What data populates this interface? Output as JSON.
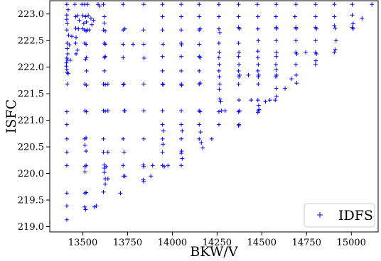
{
  "chart_data": {
    "type": "scatter",
    "title": "",
    "xlabel": "BKW/V",
    "ylabel": "ISFC",
    "xlim": [
      13315,
      15150
    ],
    "ylim": [
      218.9,
      223.25
    ],
    "xticks": [
      13500,
      13750,
      14000,
      14250,
      14500,
      14750,
      15000
    ],
    "xtick_labels": [
      "13500",
      "13750",
      "14000",
      "14250",
      "14500",
      "14750",
      "15000"
    ],
    "yticks": [
      219.0,
      219.5,
      220.0,
      220.5,
      221.0,
      221.5,
      222.0,
      222.5,
      223.0
    ],
    "ytick_labels": [
      "219.0",
      "219.5",
      "220.0",
      "220.5",
      "221.0",
      "221.5",
      "222.0",
      "222.5",
      "223.0"
    ],
    "grid": false,
    "legend_position": "lower-right",
    "marker": "+",
    "series": [
      {
        "name": "IDFS",
        "color": "#0000ff",
        "points": [
          [
            13410,
            223.18
          ],
          [
            13418,
            223.08
          ],
          [
            13410,
            222.98
          ],
          [
            13410,
            222.9
          ],
          [
            13412,
            222.82
          ],
          [
            13410,
            222.7
          ],
          [
            13420,
            222.6
          ],
          [
            13438,
            222.58
          ],
          [
            13412,
            222.45
          ],
          [
            13425,
            222.42
          ],
          [
            13412,
            222.35
          ],
          [
            13415,
            222.25
          ],
          [
            13410,
            222.17
          ],
          [
            13415,
            222.13
          ],
          [
            13430,
            222.13
          ],
          [
            13408,
            222.08
          ],
          [
            13408,
            222.02
          ],
          [
            13410,
            221.96
          ],
          [
            13412,
            221.9
          ],
          [
            13418,
            221.88
          ],
          [
            13412,
            221.68
          ],
          [
            13410,
            221.16
          ],
          [
            13410,
            220.92
          ],
          [
            13410,
            220.65
          ],
          [
            13410,
            220.4
          ],
          [
            13410,
            220.15
          ],
          [
            13410,
            219.63
          ],
          [
            13410,
            219.39
          ],
          [
            13410,
            219.13
          ],
          [
            13455,
            223.18
          ],
          [
            13460,
            222.95
          ],
          [
            13470,
            222.97
          ],
          [
            13480,
            222.88
          ],
          [
            13460,
            222.73
          ],
          [
            13475,
            222.72
          ],
          [
            13462,
            222.56
          ],
          [
            13460,
            222.45
          ],
          [
            13470,
            222.32
          ],
          [
            13462,
            222.25
          ],
          [
            13495,
            223.18
          ],
          [
            13510,
            223.18
          ],
          [
            13525,
            223.18
          ],
          [
            13500,
            222.97
          ],
          [
            13515,
            222.95
          ],
          [
            13530,
            222.97
          ],
          [
            13505,
            222.82
          ],
          [
            13520,
            222.85
          ],
          [
            13500,
            222.72
          ],
          [
            13510,
            222.7
          ],
          [
            13518,
            222.68
          ],
          [
            13525,
            222.7
          ],
          [
            13535,
            222.7
          ],
          [
            13510,
            222.45
          ],
          [
            13518,
            222.43
          ],
          [
            13520,
            222.18
          ],
          [
            13515,
            222.15
          ],
          [
            13520,
            221.93
          ],
          [
            13512,
            221.68
          ],
          [
            13520,
            221.66
          ],
          [
            13512,
            221.18
          ],
          [
            13520,
            221.16
          ],
          [
            13510,
            220.65
          ],
          [
            13518,
            220.67
          ],
          [
            13512,
            220.53
          ],
          [
            13518,
            220.42
          ],
          [
            13512,
            220.13
          ],
          [
            13518,
            220.15
          ],
          [
            13512,
            220.03
          ],
          [
            13512,
            219.63
          ],
          [
            13518,
            219.64
          ],
          [
            13510,
            219.37
          ],
          [
            13515,
            219.32
          ],
          [
            13545,
            222.92
          ],
          [
            13550,
            222.8
          ],
          [
            13560,
            222.88
          ],
          [
            13565,
            219.37
          ],
          [
            13575,
            219.39
          ],
          [
            13585,
            223.18
          ],
          [
            13595,
            223.15
          ],
          [
            13615,
            223.18
          ],
          [
            13620,
            222.95
          ],
          [
            13620,
            222.83
          ],
          [
            13615,
            222.7
          ],
          [
            13625,
            222.68
          ],
          [
            13620,
            222.45
          ],
          [
            13625,
            222.43
          ],
          [
            13620,
            222.18
          ],
          [
            13625,
            222.2
          ],
          [
            13620,
            221.93
          ],
          [
            13615,
            221.68
          ],
          [
            13625,
            221.67
          ],
          [
            13640,
            221.68
          ],
          [
            13615,
            221.18
          ],
          [
            13625,
            221.17
          ],
          [
            13640,
            221.18
          ],
          [
            13615,
            220.65
          ],
          [
            13615,
            220.4
          ],
          [
            13620,
            220.16
          ],
          [
            13630,
            220.13
          ],
          [
            13620,
            220.02
          ],
          [
            13625,
            219.9
          ],
          [
            13640,
            219.9
          ],
          [
            13625,
            219.8
          ],
          [
            13615,
            219.65
          ],
          [
            13640,
            220.4
          ],
          [
            13620,
            220.1
          ],
          [
            13710,
            219.63
          ],
          [
            13725,
            223.18
          ],
          [
            13725,
            222.7
          ],
          [
            13735,
            222.72
          ],
          [
            13725,
            222.43
          ],
          [
            13725,
            222.18
          ],
          [
            13730,
            221.68
          ],
          [
            13725,
            221.67
          ],
          [
            13730,
            221.18
          ],
          [
            13735,
            221.18
          ],
          [
            13725,
            220.65
          ],
          [
            13730,
            220.4
          ],
          [
            13725,
            220.15
          ],
          [
            13728,
            219.95
          ],
          [
            13735,
            219.95
          ],
          [
            13780,
            222.43
          ],
          [
            13840,
            223.18
          ],
          [
            13838,
            222.7
          ],
          [
            13840,
            222.43
          ],
          [
            13842,
            222.17
          ],
          [
            13840,
            221.68
          ],
          [
            13840,
            221.18
          ],
          [
            13840,
            220.65
          ],
          [
            13838,
            220.16
          ],
          [
            13840,
            220.13
          ],
          [
            13838,
            219.88
          ],
          [
            13840,
            219.85
          ],
          [
            13880,
            219.95
          ],
          [
            13890,
            220.15
          ],
          [
            13945,
            223.18
          ],
          [
            13945,
            222.95
          ],
          [
            13945,
            222.7
          ],
          [
            13948,
            222.43
          ],
          [
            13945,
            222.2
          ],
          [
            13945,
            221.93
          ],
          [
            13945,
            221.68
          ],
          [
            13948,
            221.67
          ],
          [
            13945,
            221.18
          ],
          [
            13945,
            220.92
          ],
          [
            13950,
            220.8
          ],
          [
            13945,
            220.65
          ],
          [
            13948,
            220.55
          ],
          [
            13945,
            220.4
          ],
          [
            13945,
            220.15
          ],
          [
            13955,
            220.13
          ],
          [
            13975,
            220.15
          ],
          [
            14050,
            223.18
          ],
          [
            14050,
            222.95
          ],
          [
            14050,
            222.7
          ],
          [
            14050,
            222.45
          ],
          [
            14052,
            222.42
          ],
          [
            14050,
            222.2
          ],
          [
            14050,
            221.93
          ],
          [
            14050,
            221.68
          ],
          [
            14052,
            221.66
          ],
          [
            14050,
            221.18
          ],
          [
            14050,
            220.92
          ],
          [
            14055,
            220.8
          ],
          [
            14050,
            220.65
          ],
          [
            14052,
            220.42
          ],
          [
            14050,
            220.38
          ],
          [
            14055,
            220.28
          ],
          [
            14050,
            220.15
          ],
          [
            14150,
            223.18
          ],
          [
            14150,
            222.95
          ],
          [
            14150,
            222.7
          ],
          [
            14155,
            222.72
          ],
          [
            14150,
            222.43
          ],
          [
            14150,
            222.2
          ],
          [
            14155,
            222.18
          ],
          [
            14150,
            221.93
          ],
          [
            14150,
            221.68
          ],
          [
            14155,
            221.7
          ],
          [
            14150,
            221.18
          ],
          [
            14155,
            221.16
          ],
          [
            14150,
            220.92
          ],
          [
            14158,
            220.78
          ],
          [
            14150,
            220.65
          ],
          [
            14162,
            220.58
          ],
          [
            14170,
            220.48
          ],
          [
            14220,
            220.65
          ],
          [
            14260,
            223.18
          ],
          [
            14260,
            222.95
          ],
          [
            14260,
            222.72
          ],
          [
            14265,
            222.65
          ],
          [
            14260,
            222.45
          ],
          [
            14262,
            222.28
          ],
          [
            14260,
            222.18
          ],
          [
            14262,
            222.05
          ],
          [
            14260,
            221.93
          ],
          [
            14262,
            221.82
          ],
          [
            14265,
            221.68
          ],
          [
            14262,
            221.58
          ],
          [
            14265,
            221.4
          ],
          [
            14270,
            221.35
          ],
          [
            14260,
            221.16
          ],
          [
            14275,
            221.18
          ],
          [
            14295,
            221.18
          ],
          [
            14260,
            220.92
          ],
          [
            14370,
            223.18
          ],
          [
            14370,
            222.95
          ],
          [
            14370,
            222.75
          ],
          [
            14375,
            222.72
          ],
          [
            14370,
            222.45
          ],
          [
            14372,
            222.28
          ],
          [
            14370,
            222.2
          ],
          [
            14372,
            222.05
          ],
          [
            14370,
            221.93
          ],
          [
            14372,
            221.82
          ],
          [
            14375,
            221.85
          ],
          [
            14370,
            221.68
          ],
          [
            14372,
            221.38
          ],
          [
            14370,
            221.16
          ],
          [
            14375,
            221.18
          ],
          [
            14372,
            220.92
          ],
          [
            14370,
            220.9
          ],
          [
            14425,
            221.85
          ],
          [
            14440,
            221.38
          ],
          [
            14475,
            223.18
          ],
          [
            14478,
            222.95
          ],
          [
            14478,
            222.72
          ],
          [
            14480,
            222.5
          ],
          [
            14478,
            222.3
          ],
          [
            14478,
            222.18
          ],
          [
            14480,
            222.05
          ],
          [
            14478,
            221.93
          ],
          [
            14480,
            221.82
          ],
          [
            14482,
            221.85
          ],
          [
            14480,
            221.68
          ],
          [
            14478,
            221.38
          ],
          [
            14482,
            221.28
          ],
          [
            14480,
            221.18
          ],
          [
            14485,
            221.2
          ],
          [
            14478,
            221.15
          ],
          [
            14520,
            221.35
          ],
          [
            14545,
            221.38
          ],
          [
            14580,
            223.18
          ],
          [
            14578,
            222.95
          ],
          [
            14580,
            222.75
          ],
          [
            14582,
            222.72
          ],
          [
            14580,
            222.5
          ],
          [
            14582,
            222.28
          ],
          [
            14580,
            222.2
          ],
          [
            14578,
            222.05
          ],
          [
            14580,
            221.95
          ],
          [
            14578,
            221.82
          ],
          [
            14582,
            221.85
          ],
          [
            14580,
            221.6
          ],
          [
            14582,
            221.45
          ],
          [
            14575,
            221.38
          ],
          [
            14630,
            221.6
          ],
          [
            14665,
            221.78
          ],
          [
            14690,
            223.18
          ],
          [
            14685,
            222.95
          ],
          [
            14690,
            222.75
          ],
          [
            14692,
            222.72
          ],
          [
            14690,
            222.5
          ],
          [
            14690,
            222.28
          ],
          [
            14695,
            222.25
          ],
          [
            14690,
            222.05
          ],
          [
            14692,
            221.85
          ],
          [
            14695,
            221.7
          ],
          [
            14745,
            222.28
          ],
          [
            14800,
            223.18
          ],
          [
            14800,
            222.95
          ],
          [
            14800,
            222.75
          ],
          [
            14805,
            222.72
          ],
          [
            14800,
            222.5
          ],
          [
            14800,
            222.28
          ],
          [
            14805,
            222.25
          ],
          [
            14802,
            222.12
          ],
          [
            14800,
            222.05
          ],
          [
            14905,
            223.18
          ],
          [
            14905,
            222.95
          ],
          [
            14905,
            222.78
          ],
          [
            14910,
            222.73
          ],
          [
            14915,
            222.5
          ],
          [
            14910,
            222.33
          ],
          [
            14905,
            222.28
          ],
          [
            15005,
            223.18
          ],
          [
            15005,
            222.98
          ],
          [
            15010,
            222.82
          ],
          [
            15005,
            222.75
          ],
          [
            15010,
            222.72
          ],
          [
            15060,
            222.92
          ],
          [
            15115,
            223.18
          ]
        ]
      }
    ]
  }
}
